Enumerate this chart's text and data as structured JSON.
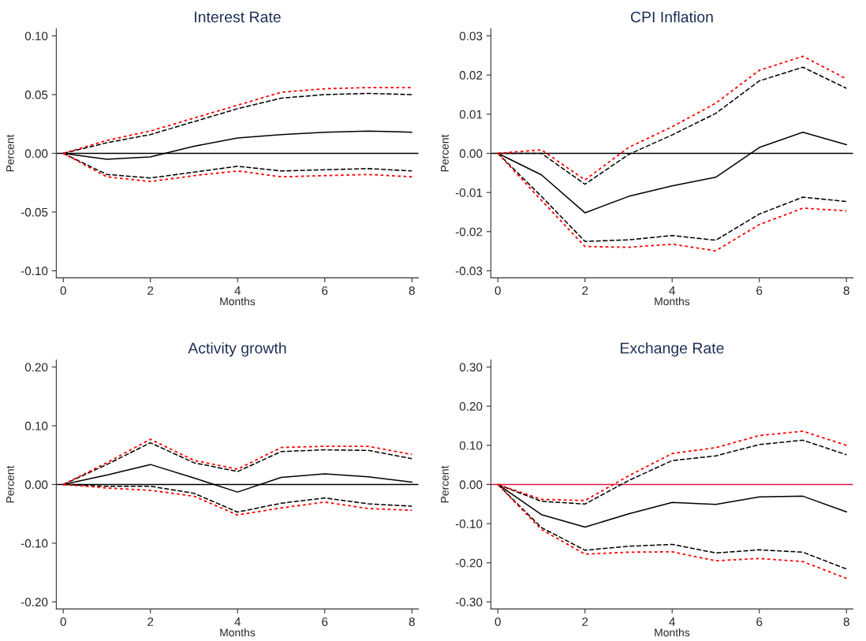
{
  "chart_data": [
    {
      "type": "line",
      "title": "Interest Rate",
      "xlabel": "Months",
      "ylabel": "Percent",
      "x": [
        0,
        1,
        2,
        3,
        4,
        5,
        6,
        7,
        8
      ],
      "xlim": [
        -0.16,
        8.15
      ],
      "xticks": [
        0,
        2,
        4,
        6,
        8
      ],
      "ylim": [
        -0.106,
        0.106
      ],
      "yticks": [
        {
          "value": 0.1,
          "label": "0.10"
        },
        {
          "value": 0.05,
          "label": "0.05"
        },
        {
          "value": 0,
          "label": "0.00"
        },
        {
          "value": -0.05,
          "label": "-0.05"
        },
        {
          "value": -0.1,
          "label": "-0.10"
        }
      ],
      "grid": false,
      "ref_lines": [
        {
          "axis": "y",
          "value": 0,
          "color": "#000000"
        }
      ],
      "series": [
        {
          "color": "#000000",
          "line_style": "solid",
          "values": [
            0,
            -0.005,
            -0.003,
            0.006,
            0.013,
            0.016,
            0.018,
            0.019,
            0.018
          ]
        },
        {
          "color": "#000000",
          "line_style": "dashed",
          "values": [
            0,
            0.009,
            0.016,
            0.027,
            0.038,
            0.047,
            0.05,
            0.051,
            0.05
          ]
        },
        {
          "color": "#ff0000",
          "line_style": "dotted",
          "values": [
            0,
            0.011,
            0.019,
            0.03,
            0.041,
            0.052,
            0.055,
            0.056,
            0.056
          ]
        },
        {
          "color": "#000000",
          "line_style": "dashed",
          "values": [
            0,
            -0.018,
            -0.021,
            -0.016,
            -0.011,
            -0.015,
            -0.014,
            -0.013,
            -0.015
          ]
        },
        {
          "color": "#ff0000",
          "line_style": "dotted",
          "values": [
            0,
            -0.02,
            -0.024,
            -0.019,
            -0.015,
            -0.02,
            -0.019,
            -0.018,
            -0.02
          ]
        }
      ]
    },
    {
      "type": "line",
      "title": "CPI Inflation",
      "xlabel": "Months",
      "ylabel": "Percent",
      "x": [
        0,
        1,
        2,
        3,
        4,
        5,
        6,
        7,
        8
      ],
      "xlim": [
        -0.16,
        8.15
      ],
      "xticks": [
        0,
        2,
        4,
        6,
        8
      ],
      "ylim": [
        -0.0318,
        0.0318
      ],
      "yticks": [
        {
          "value": 0.03,
          "label": "0.03"
        },
        {
          "value": 0.02,
          "label": "0.02"
        },
        {
          "value": 0.01,
          "label": "0.01"
        },
        {
          "value": 0,
          "label": "0.00"
        },
        {
          "value": -0.01,
          "label": "-0.01"
        },
        {
          "value": -0.02,
          "label": "-0.02"
        },
        {
          "value": -0.03,
          "label": "-0.03"
        }
      ],
      "grid": false,
      "ref_lines": [
        {
          "axis": "y",
          "value": 0,
          "color": "#000000"
        }
      ],
      "series": [
        {
          "color": "#000000",
          "line_style": "solid",
          "values": [
            0,
            -0.0055,
            -0.0152,
            -0.011,
            -0.0083,
            -0.0061,
            0.0015,
            0.0054,
            0.0022
          ]
        },
        {
          "color": "#000000",
          "line_style": "dashed",
          "values": [
            0,
            0,
            -0.0079,
            -0.0003,
            0.0047,
            0.0102,
            0.0185,
            0.022,
            0.0166
          ]
        },
        {
          "color": "#ff0000",
          "line_style": "dotted",
          "values": [
            0,
            0.0009,
            -0.0068,
            0.0015,
            0.0068,
            0.0128,
            0.0212,
            0.0248,
            0.019
          ]
        },
        {
          "color": "#000000",
          "line_style": "dashed",
          "values": [
            0,
            -0.011,
            -0.0225,
            -0.0221,
            -0.021,
            -0.0222,
            -0.0155,
            -0.0112,
            -0.0123
          ]
        },
        {
          "color": "#ff0000",
          "line_style": "dotted",
          "values": [
            0,
            -0.012,
            -0.0238,
            -0.024,
            -0.0232,
            -0.0249,
            -0.0182,
            -0.014,
            -0.0147
          ]
        }
      ]
    },
    {
      "type": "line",
      "title": "Activity growth",
      "xlabel": "Months",
      "ylabel": "Percent",
      "x": [
        0,
        1,
        2,
        3,
        4,
        5,
        6,
        7,
        8
      ],
      "xlim": [
        -0.16,
        8.15
      ],
      "xticks": [
        0,
        2,
        4,
        6,
        8
      ],
      "ylim": [
        -0.212,
        0.212
      ],
      "yticks": [
        {
          "value": 0.2,
          "label": "0.20"
        },
        {
          "value": 0.1,
          "label": "0.10"
        },
        {
          "value": 0,
          "label": "0.00"
        },
        {
          "value": -0.1,
          "label": "-0.10"
        },
        {
          "value": -0.2,
          "label": "-0.20"
        }
      ],
      "grid": false,
      "ref_lines": [
        {
          "axis": "y",
          "value": 0,
          "color": "#000000"
        }
      ],
      "series": [
        {
          "color": "#000000",
          "line_style": "solid",
          "values": [
            0,
            0.016,
            0.034,
            0.011,
            -0.013,
            0.012,
            0.018,
            0.013,
            0.004
          ]
        },
        {
          "color": "#000000",
          "line_style": "dashed",
          "values": [
            0,
            0.034,
            0.071,
            0.037,
            0.022,
            0.056,
            0.059,
            0.058,
            0.044
          ]
        },
        {
          "color": "#ff0000",
          "line_style": "dotted",
          "values": [
            0,
            0.037,
            0.077,
            0.041,
            0.026,
            0.063,
            0.065,
            0.065,
            0.051
          ]
        },
        {
          "color": "#000000",
          "line_style": "dashed",
          "values": [
            0,
            -0.003,
            -0.003,
            -0.015,
            -0.047,
            -0.032,
            -0.023,
            -0.033,
            -0.037
          ]
        },
        {
          "color": "#ff0000",
          "line_style": "dotted",
          "values": [
            0,
            -0.006,
            -0.01,
            -0.02,
            -0.052,
            -0.04,
            -0.03,
            -0.041,
            -0.044
          ]
        }
      ]
    },
    {
      "type": "line",
      "title": "Exchange Rate",
      "xlabel": "Months",
      "ylabel": "Percent",
      "x": [
        0,
        1,
        2,
        3,
        4,
        5,
        6,
        7,
        8
      ],
      "xlim": [
        -0.16,
        8.15
      ],
      "xticks": [
        0,
        2,
        4,
        6,
        8
      ],
      "ylim": [
        -0.318,
        0.318
      ],
      "yticks": [
        {
          "value": 0.3,
          "label": "0.30"
        },
        {
          "value": 0.2,
          "label": "0.20"
        },
        {
          "value": 0.1,
          "label": "0.10"
        },
        {
          "value": 0,
          "label": "0.00"
        },
        {
          "value": -0.1,
          "label": "-0.10"
        },
        {
          "value": -0.2,
          "label": "-0.20"
        },
        {
          "value": -0.3,
          "label": "-0.30"
        }
      ],
      "grid": false,
      "ref_lines": [
        {
          "axis": "y",
          "value": 0,
          "color": "#d81b4a"
        }
      ],
      "series": [
        {
          "color": "#000000",
          "line_style": "solid",
          "values": [
            0,
            -0.077,
            -0.109,
            -0.075,
            -0.046,
            -0.051,
            -0.032,
            -0.03,
            -0.07
          ]
        },
        {
          "color": "#000000",
          "line_style": "dashed",
          "values": [
            0,
            -0.043,
            -0.05,
            0.01,
            0.061,
            0.073,
            0.102,
            0.113,
            0.076
          ]
        },
        {
          "color": "#ff0000",
          "line_style": "dotted",
          "values": [
            0,
            -0.038,
            -0.041,
            0.022,
            0.079,
            0.094,
            0.125,
            0.136,
            0.1
          ]
        },
        {
          "color": "#000000",
          "line_style": "dashed",
          "values": [
            0,
            -0.11,
            -0.168,
            -0.158,
            -0.153,
            -0.175,
            -0.167,
            -0.173,
            -0.216
          ]
        },
        {
          "color": "#ff0000",
          "line_style": "dotted",
          "values": [
            0,
            -0.115,
            -0.178,
            -0.173,
            -0.172,
            -0.195,
            -0.189,
            -0.197,
            -0.24
          ]
        }
      ]
    }
  ]
}
